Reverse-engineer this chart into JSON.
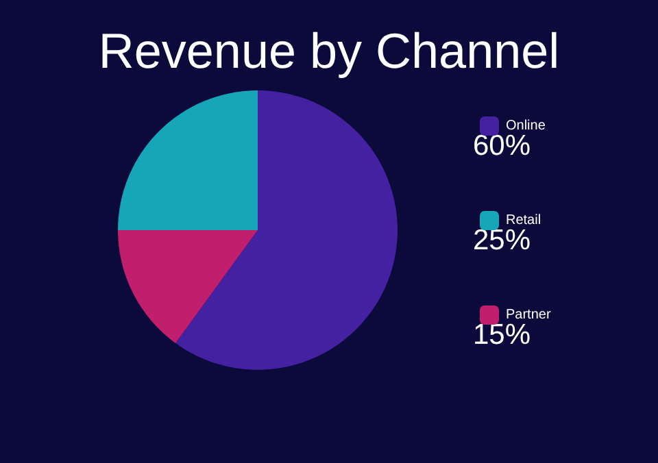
{
  "chart_data": {
    "type": "pie",
    "title": "Revenue by Channel",
    "categories": [
      "Online",
      "Retail",
      "Partner"
    ],
    "values": [
      60,
      25,
      15
    ],
    "colors": [
      "#4321a0",
      "#17a6b8",
      "#c11f6e"
    ],
    "value_labels": [
      "60%",
      "25%",
      "15%"
    ],
    "legend": "right"
  }
}
